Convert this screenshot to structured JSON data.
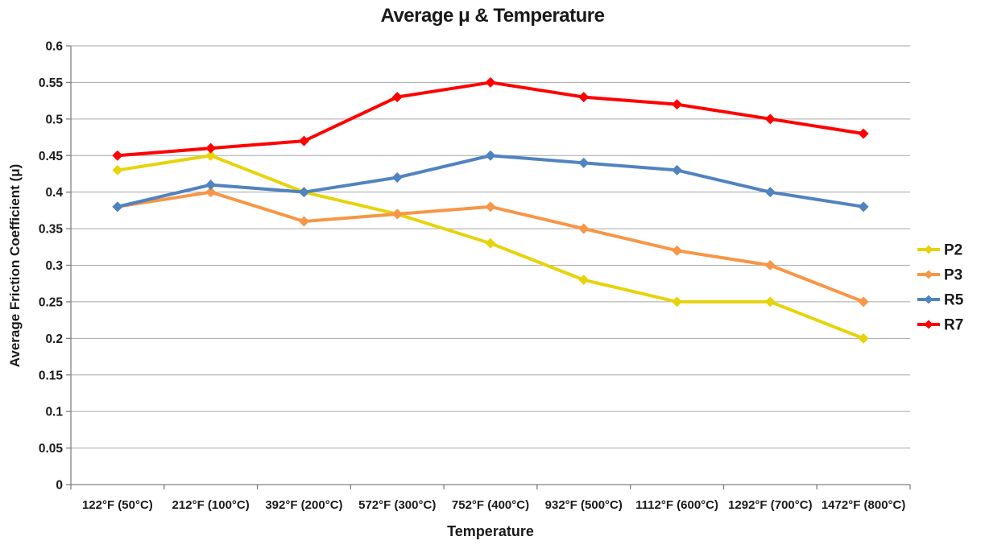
{
  "chart_data": {
    "type": "line",
    "title": "Average μ & Temperature",
    "xlabel": "Temperature",
    "ylabel": "Average Friction Coefficient (μ)",
    "categories": [
      "122°F (50°C)",
      "212°F (100°C)",
      "392°F (200°C)",
      "572°F (300°C)",
      "752°F (400°C)",
      "932°F (500°C)",
      "1112°F (600°C)",
      "1292°F (700°C)",
      "1472°F (800°C)"
    ],
    "series": [
      {
        "name": "P2",
        "color": "#e7d30c",
        "values": [
          0.43,
          0.45,
          0.4,
          0.37,
          0.33,
          0.28,
          0.25,
          0.25,
          0.2
        ]
      },
      {
        "name": "P3",
        "color": "#f79646",
        "values": [
          0.38,
          0.4,
          0.36,
          0.37,
          0.38,
          0.35,
          0.32,
          0.3,
          0.25
        ]
      },
      {
        "name": "R5",
        "color": "#5083c0",
        "values": [
          0.38,
          0.41,
          0.4,
          0.42,
          0.45,
          0.44,
          0.43,
          0.4,
          0.38
        ]
      },
      {
        "name": "R7",
        "color": "#fe0000",
        "values": [
          0.45,
          0.46,
          0.47,
          0.53,
          0.55,
          0.53,
          0.52,
          0.5,
          0.48
        ]
      }
    ],
    "ylim": [
      0,
      0.6
    ],
    "ytick_step": 0.05,
    "grid": true,
    "marker": "diamond",
    "legend_position": "right"
  },
  "colors": {
    "gridline": "#a6a6a6",
    "axis": "#7f7f7f",
    "text": "#1a1a1a",
    "background": "#ffffff"
  }
}
